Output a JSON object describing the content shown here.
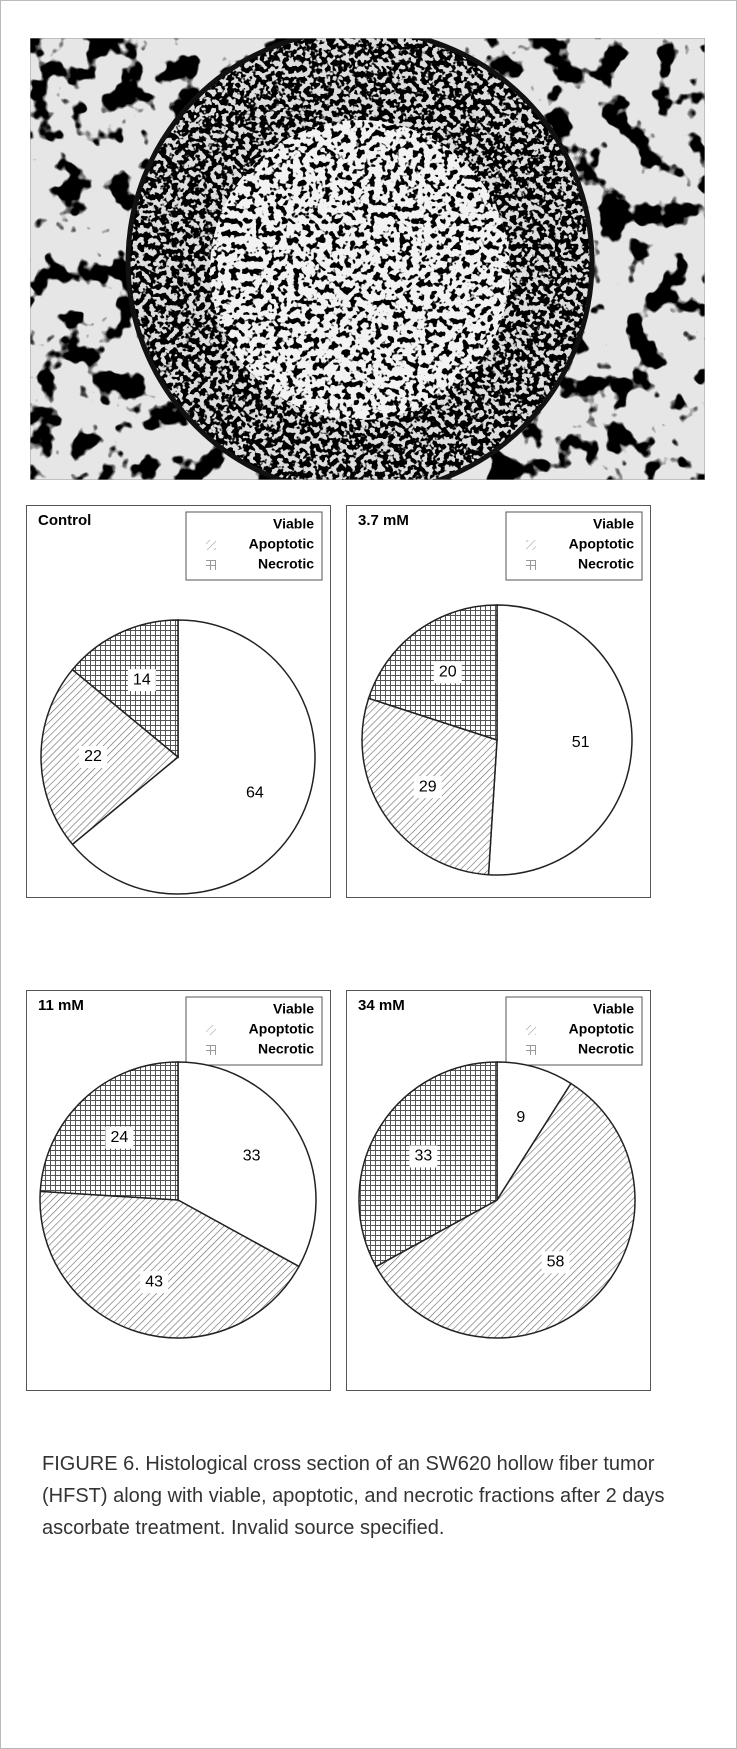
{
  "chart_data": [
    {
      "type": "pie",
      "title": "Control",
      "categories": [
        "Viable",
        "Apoptotic",
        "Necrotic"
      ],
      "values": [
        64,
        22,
        14
      ],
      "fills": [
        "white",
        "diagonal",
        "grid"
      ]
    },
    {
      "type": "pie",
      "title": "3.7 mM",
      "categories": [
        "Viable",
        "Apoptotic",
        "Necrotic"
      ],
      "values": [
        51,
        29,
        20
      ],
      "fills": [
        "white",
        "diagonal",
        "grid"
      ]
    },
    {
      "type": "pie",
      "title": "11 mM",
      "categories": [
        "Viable",
        "Apoptotic",
        "Necrotic"
      ],
      "values": [
        33,
        43,
        24
      ],
      "fills": [
        "white",
        "diagonal",
        "grid"
      ]
    },
    {
      "type": "pie",
      "title": "34 mM",
      "categories": [
        "Viable",
        "Apoptotic",
        "Necrotic"
      ],
      "values": [
        9,
        58,
        33
      ],
      "fills": [
        "white",
        "diagonal",
        "grid"
      ]
    }
  ],
  "caption": "FIGURE 6. Histological cross section of an SW620 hollow fiber tumor (HFST) along with viable, apoptotic, and necrotic fractions after 2 days ascorbate treatment. Invalid source specified."
}
